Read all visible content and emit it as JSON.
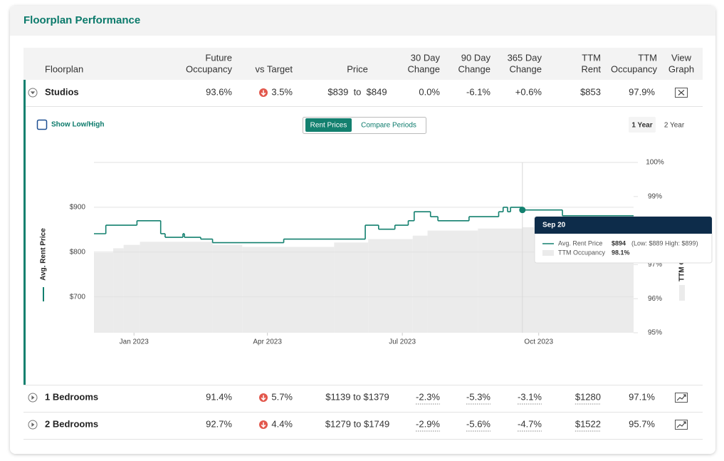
{
  "header": {
    "title": "Floorplan Performance"
  },
  "table": {
    "columns": [
      [
        "Floorplan"
      ],
      [
        "Future",
        "Occupancy"
      ],
      [
        "vs Target"
      ],
      [
        "Price"
      ],
      [
        "30 Day",
        "Change"
      ],
      [
        "90 Day",
        "Change"
      ],
      [
        "365 Day",
        "Change"
      ],
      [
        "TTM",
        "Rent"
      ],
      [
        "TTM",
        "Occupancy"
      ],
      [
        "View",
        "Graph"
      ]
    ],
    "rows": [
      [
        "Studios",
        "93.6%",
        "3.5%",
        "$839  to  $849",
        "0.0%",
        "-6.1%",
        "+0.6%",
        "$853",
        "97.9%"
      ],
      [
        "1 Bedrooms",
        "91.4%",
        "5.7%",
        "$1139 to $1379",
        "-2.3%",
        "-5.3%",
        "-3.1%",
        "$1280",
        "97.1%"
      ],
      [
        "2 Bedrooms",
        "92.7%",
        "4.4%",
        "$1279 to $1749",
        "-2.9%",
        "-5.6%",
        "-4.7%",
        "$1522",
        "95.7%"
      ]
    ]
  },
  "controls": {
    "show_low_high": "Show Low/High",
    "modes": [
      "Rent Prices",
      "Compare Periods"
    ],
    "periods": [
      "1 Year",
      "2 Year"
    ]
  },
  "chart_data": {
    "type": "line",
    "xlim": [
      "2022-12-05",
      "2023-12-04"
    ],
    "xticks": [
      {
        "value": "2023-01-01",
        "label": "Jan 2023"
      },
      {
        "value": "2023-04-01",
        "label": "Apr 2023"
      },
      {
        "value": "2023-07-01",
        "label": "Jul 2023"
      },
      {
        "value": "2023-10-01",
        "label": "Oct 2023"
      }
    ],
    "ylim": [
      620,
      1000
    ],
    "yticks": [
      {
        "value": 700,
        "label": "$700"
      },
      {
        "value": 800,
        "label": "$800"
      },
      {
        "value": 900,
        "label": "$900"
      }
    ],
    "y2lim": [
      95,
      100
    ],
    "y2ticks": [
      {
        "value": 95,
        "label": "95%"
      },
      {
        "value": 96,
        "label": "96%"
      },
      {
        "value": 97,
        "label": "97%"
      },
      {
        "value": 98,
        "label": "98%"
      },
      {
        "value": 99,
        "label": "99%"
      },
      {
        "value": 100,
        "label": "100%"
      }
    ],
    "grid": true,
    "series": [
      {
        "name": "Avg. Rent Price",
        "color": "#13806f",
        "x": [
          "2022-12-05",
          "2022-12-13",
          "2023-01-03",
          "2023-01-19",
          "2023-01-22",
          "2023-02-03",
          "2023-02-04",
          "2023-02-15",
          "2023-02-23",
          "2023-04-12",
          "2023-06-06",
          "2023-06-15",
          "2023-06-26",
          "2023-07-05",
          "2023-07-09",
          "2023-07-20",
          "2023-07-25",
          "2023-08-15",
          "2023-09-04",
          "2023-09-07",
          "2023-09-10",
          "2023-09-12",
          "2023-09-20",
          "2023-10-17"
        ],
        "values": [
          841,
          860,
          870,
          841,
          833,
          841,
          833,
          829,
          821,
          829,
          860,
          851,
          860,
          870,
          890,
          879,
          870,
          879,
          890,
          900,
          890,
          900,
          894,
          881
        ]
      },
      {
        "name": "TTM Occupancy",
        "color": "#ebebeb",
        "axis": "y2",
        "x": [
          "2022-12-05",
          "2022-12-18",
          "2022-12-25",
          "2023-01-05",
          "2023-02-23",
          "2023-03-15",
          "2023-05-16",
          "2023-06-08",
          "2023-07-08",
          "2023-07-18",
          "2023-08-21",
          "2023-09-20"
        ],
        "values": [
          97.35,
          97.48,
          97.58,
          97.67,
          97.58,
          97.52,
          97.65,
          97.75,
          97.85,
          98.0,
          98.06,
          98.1
        ]
      }
    ],
    "highlight": "2023-09-20",
    "tooltip": {
      "date": "Sep 20",
      "rent": "$894",
      "range": "(Low: $889 High: $899)",
      "occupancy": "98.1%"
    }
  }
}
